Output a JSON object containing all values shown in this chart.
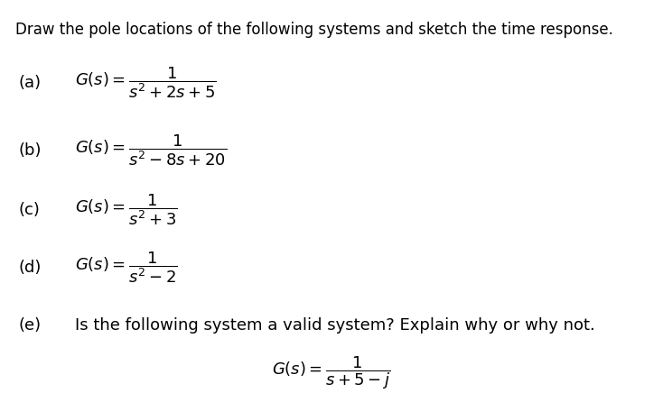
{
  "background_color": "#ffffff",
  "title_text": "Draw the pole locations of the following systems and sketch the time response.",
  "title_fontsize": 12.0,
  "items": [
    {
      "label": "(a)",
      "gs_expr": "$G(s) = \\dfrac{1}{s^2+2s+5}$"
    },
    {
      "label": "(b)",
      "gs_expr": "$G(s) = \\dfrac{1}{s^2-8s+20}$"
    },
    {
      "label": "(c)",
      "gs_expr": "$G(s) = \\dfrac{1}{s^2+3}$"
    },
    {
      "label": "(d)",
      "gs_expr": "$G(s) = \\dfrac{1}{s^2-2}$"
    }
  ],
  "part_e_label": "(e)",
  "part_e_question": "Is the following system a valid system? Explain why or why not.",
  "part_e_gs_expr": "$G(s) = \\dfrac{1}{s+5-j}$",
  "fontsize_label": 13,
  "fontsize_gs": 13,
  "fontsize_e_text": 13
}
